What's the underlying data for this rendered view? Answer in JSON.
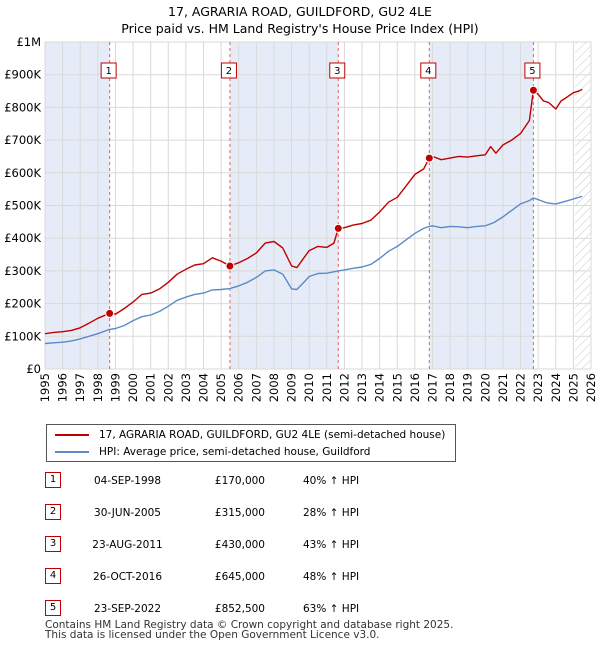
{
  "chart_data": {
    "type": "line",
    "title": "17, AGRARIA ROAD, GUILDFORD, GU2 4LE",
    "subtitle": "Price paid vs. HM Land Registry's House Price Index (HPI)",
    "xlabel": "",
    "ylabel": "",
    "xlim": [
      1995,
      2026
    ],
    "ylim": [
      0,
      1000000
    ],
    "y_ticks": [
      {
        "value": 0,
        "label": "£0"
      },
      {
        "value": 100000,
        "label": "£100K"
      },
      {
        "value": 200000,
        "label": "£200K"
      },
      {
        "value": 300000,
        "label": "£300K"
      },
      {
        "value": 400000,
        "label": "£400K"
      },
      {
        "value": 500000,
        "label": "£500K"
      },
      {
        "value": 600000,
        "label": "£600K"
      },
      {
        "value": 700000,
        "label": "£700K"
      },
      {
        "value": 800000,
        "label": "£800K"
      },
      {
        "value": 900000,
        "label": "£900K"
      },
      {
        "value": 1000000,
        "label": "£1M"
      }
    ],
    "x_ticks": [
      "1995",
      "1996",
      "1997",
      "1998",
      "1999",
      "2000",
      "2001",
      "2002",
      "2003",
      "2004",
      "2005",
      "2006",
      "2007",
      "2008",
      "2009",
      "2010",
      "2011",
      "2012",
      "2013",
      "2014",
      "2015",
      "2016",
      "2017",
      "2018",
      "2019",
      "2020",
      "2021",
      "2022",
      "2023",
      "2024",
      "2025",
      "2026"
    ],
    "grid": true,
    "legend_position": "below",
    "series": [
      {
        "name": "17, AGRARIA ROAD, GUILDFORD, GU2 4LE (semi-detached house)",
        "color": "#c00000",
        "points": [
          [
            1995.0,
            108000
          ],
          [
            1995.5,
            112000
          ],
          [
            1996.0,
            114000
          ],
          [
            1996.5,
            118000
          ],
          [
            1997.0,
            126000
          ],
          [
            1997.5,
            140000
          ],
          [
            1998.0,
            155000
          ],
          [
            1998.67,
            170000
          ],
          [
            1999.0,
            168000
          ],
          [
            1999.5,
            185000
          ],
          [
            2000.0,
            205000
          ],
          [
            2000.5,
            228000
          ],
          [
            2001.0,
            232000
          ],
          [
            2001.5,
            245000
          ],
          [
            2002.0,
            265000
          ],
          [
            2002.5,
            290000
          ],
          [
            2003.0,
            305000
          ],
          [
            2003.5,
            318000
          ],
          [
            2004.0,
            322000
          ],
          [
            2004.5,
            340000
          ],
          [
            2005.0,
            330000
          ],
          [
            2005.5,
            315000
          ],
          [
            2006.0,
            325000
          ],
          [
            2006.5,
            338000
          ],
          [
            2007.0,
            355000
          ],
          [
            2007.5,
            385000
          ],
          [
            2008.0,
            390000
          ],
          [
            2008.5,
            370000
          ],
          [
            2009.0,
            315000
          ],
          [
            2009.3,
            310000
          ],
          [
            2009.7,
            340000
          ],
          [
            2010.0,
            362000
          ],
          [
            2010.5,
            375000
          ],
          [
            2011.0,
            372000
          ],
          [
            2011.4,
            385000
          ],
          [
            2011.65,
            430000
          ],
          [
            2012.0,
            432000
          ],
          [
            2012.5,
            440000
          ],
          [
            2013.0,
            445000
          ],
          [
            2013.5,
            455000
          ],
          [
            2014.0,
            480000
          ],
          [
            2014.5,
            510000
          ],
          [
            2015.0,
            525000
          ],
          [
            2015.5,
            560000
          ],
          [
            2016.0,
            595000
          ],
          [
            2016.5,
            612000
          ],
          [
            2016.82,
            645000
          ],
          [
            2017.0,
            650000
          ],
          [
            2017.5,
            640000
          ],
          [
            2018.0,
            645000
          ],
          [
            2018.5,
            650000
          ],
          [
            2019.0,
            648000
          ],
          [
            2019.5,
            652000
          ],
          [
            2020.0,
            655000
          ],
          [
            2020.3,
            680000
          ],
          [
            2020.6,
            660000
          ],
          [
            2021.0,
            685000
          ],
          [
            2021.5,
            700000
          ],
          [
            2022.0,
            720000
          ],
          [
            2022.5,
            760000
          ],
          [
            2022.73,
            852500
          ],
          [
            2023.0,
            840000
          ],
          [
            2023.3,
            820000
          ],
          [
            2023.6,
            815000
          ],
          [
            2024.0,
            795000
          ],
          [
            2024.3,
            820000
          ],
          [
            2024.6,
            830000
          ],
          [
            2025.0,
            845000
          ],
          [
            2025.3,
            850000
          ],
          [
            2025.5,
            855000
          ]
        ]
      },
      {
        "name": "HPI: Average price, semi-detached house, Guildford",
        "color": "#5b8ac6",
        "points": [
          [
            1995.0,
            78000
          ],
          [
            1995.5,
            80000
          ],
          [
            1996.0,
            82000
          ],
          [
            1996.5,
            86000
          ],
          [
            1997.0,
            92000
          ],
          [
            1997.5,
            100000
          ],
          [
            1998.0,
            108000
          ],
          [
            1998.67,
            121000
          ],
          [
            1999.0,
            124000
          ],
          [
            1999.5,
            133000
          ],
          [
            2000.0,
            148000
          ],
          [
            2000.5,
            160000
          ],
          [
            2001.0,
            165000
          ],
          [
            2001.5,
            176000
          ],
          [
            2002.0,
            192000
          ],
          [
            2002.5,
            210000
          ],
          [
            2003.0,
            220000
          ],
          [
            2003.5,
            228000
          ],
          [
            2004.0,
            232000
          ],
          [
            2004.5,
            242000
          ],
          [
            2005.0,
            243000
          ],
          [
            2005.5,
            246000
          ],
          [
            2006.0,
            254000
          ],
          [
            2006.5,
            265000
          ],
          [
            2007.0,
            280000
          ],
          [
            2007.5,
            300000
          ],
          [
            2008.0,
            303000
          ],
          [
            2008.5,
            290000
          ],
          [
            2009.0,
            245000
          ],
          [
            2009.3,
            243000
          ],
          [
            2009.7,
            265000
          ],
          [
            2010.0,
            283000
          ],
          [
            2010.5,
            292000
          ],
          [
            2011.0,
            293000
          ],
          [
            2011.65,
            300000
          ],
          [
            2012.0,
            303000
          ],
          [
            2012.5,
            308000
          ],
          [
            2013.0,
            312000
          ],
          [
            2013.5,
            320000
          ],
          [
            2014.0,
            338000
          ],
          [
            2014.5,
            360000
          ],
          [
            2015.0,
            375000
          ],
          [
            2015.5,
            395000
          ],
          [
            2016.0,
            415000
          ],
          [
            2016.5,
            430000
          ],
          [
            2016.82,
            436000
          ],
          [
            2017.0,
            438000
          ],
          [
            2017.5,
            432000
          ],
          [
            2018.0,
            436000
          ],
          [
            2018.5,
            435000
          ],
          [
            2019.0,
            432000
          ],
          [
            2019.5,
            436000
          ],
          [
            2020.0,
            438000
          ],
          [
            2020.5,
            448000
          ],
          [
            2021.0,
            465000
          ],
          [
            2021.5,
            485000
          ],
          [
            2022.0,
            505000
          ],
          [
            2022.5,
            515000
          ],
          [
            2022.73,
            523000
          ],
          [
            2023.0,
            518000
          ],
          [
            2023.5,
            508000
          ],
          [
            2024.0,
            505000
          ],
          [
            2024.5,
            512000
          ],
          [
            2025.0,
            520000
          ],
          [
            2025.5,
            528000
          ]
        ]
      }
    ],
    "sales": [
      {
        "num": "1",
        "year": 1998.67,
        "price": 170000
      },
      {
        "num": "2",
        "year": 2005.5,
        "price": 315000
      },
      {
        "num": "3",
        "year": 2011.65,
        "price": 430000
      },
      {
        "num": "4",
        "year": 2016.82,
        "price": 645000
      },
      {
        "num": "5",
        "year": 2022.73,
        "price": 852500
      }
    ],
    "shaded_periods": [
      [
        1995,
        1998.67
      ],
      [
        2005.5,
        2011.65
      ],
      [
        2016.82,
        2022.73
      ]
    ],
    "hatched_period": [
      2025.1,
      2026
    ]
  },
  "legend": {
    "property_label": "17, AGRARIA ROAD, GUILDFORD, GU2 4LE (semi-detached house)",
    "hpi_label": "HPI: Average price, semi-detached house, Guildford",
    "property_color": "#c00000",
    "hpi_color": "#5b8ac6"
  },
  "table": {
    "rows": [
      {
        "num": "1",
        "date": "04-SEP-1998",
        "price": "£170,000",
        "hpi": "40% ↑ HPI"
      },
      {
        "num": "2",
        "date": "30-JUN-2005",
        "price": "£315,000",
        "hpi": "28% ↑ HPI"
      },
      {
        "num": "3",
        "date": "23-AUG-2011",
        "price": "£430,000",
        "hpi": "43% ↑ HPI"
      },
      {
        "num": "4",
        "date": "26-OCT-2016",
        "price": "£645,000",
        "hpi": "48% ↑ HPI"
      },
      {
        "num": "5",
        "date": "23-SEP-2022",
        "price": "£852,500",
        "hpi": "63% ↑ HPI"
      }
    ]
  },
  "footer": {
    "line1": "Contains HM Land Registry data © Crown copyright and database right 2025.",
    "line2": "This data is licensed under the Open Government Licence v3.0."
  }
}
